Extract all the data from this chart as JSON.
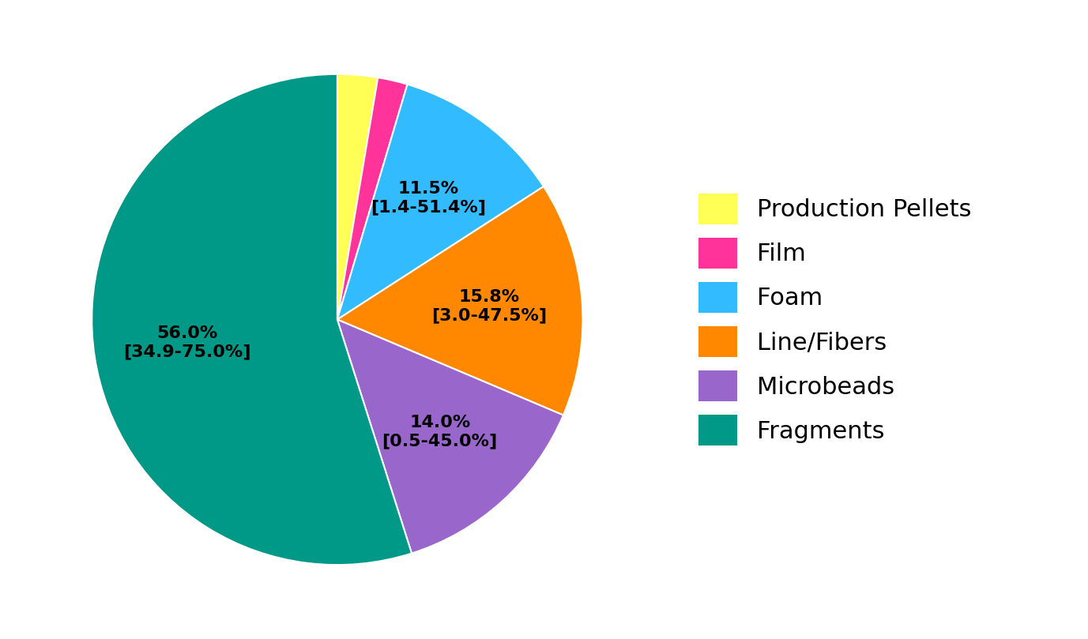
{
  "categories": [
    "Production Pellets",
    "Film",
    "Foam",
    "Line/Fibers",
    "Microbeads",
    "Fragments"
  ],
  "values": [
    2.7,
    2.0,
    11.5,
    15.8,
    14.0,
    56.0
  ],
  "colors": [
    "#FFFF55",
    "#FF3399",
    "#33BBFF",
    "#FF8800",
    "#9966CC",
    "#009988"
  ],
  "labels": [
    "",
    "",
    "11.5%\n[1.4-51.4%]",
    "15.8%\n[3.0-47.5%]",
    "14.0%\n[0.5-45.0%]",
    "56.0%\n[34.9-75.0%]"
  ],
  "legend_labels": [
    "Production Pellets",
    "Film",
    "Foam",
    "Line/Fibers",
    "Microbeads",
    "Fragments"
  ],
  "background_color": "#FFFFFF",
  "label_fontsize": 16,
  "legend_fontsize": 22,
  "startangle": 90
}
